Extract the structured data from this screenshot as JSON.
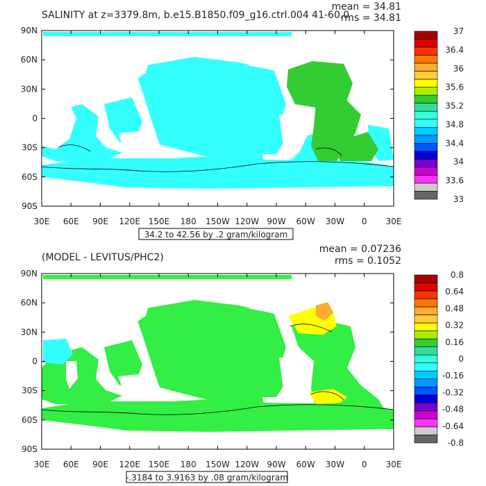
{
  "chart_data": [
    {
      "type": "heatmap",
      "title": "SALINITY at z=3379.8m, b.e15.B1850.f09_g16.ctrl.004 41-60.0",
      "stats": {
        "mean": "mean = 34.81",
        "rms": "rms = 34.81"
      },
      "contour_caption": "34.2 to 42.56 by .2 gram/kilogram",
      "x_ticks": [
        "30E",
        "60E",
        "90E",
        "120E",
        "150E",
        "180",
        "150W",
        "120W",
        "90W",
        "60W",
        "30W",
        "0",
        "30E"
      ],
      "y_ticks": [
        "90N",
        "60N",
        "30N",
        "0",
        "30S",
        "60S",
        "90S"
      ],
      "xlim": [
        30,
        390
      ],
      "ylim": [
        -90,
        90
      ],
      "colorbar": {
        "labels": [
          "37",
          "36.4",
          "36",
          "35.6",
          "35.2",
          "34.8",
          "34.4",
          "34",
          "33.6",
          "33"
        ],
        "colors": [
          "#aa0000",
          "#e00000",
          "#ff3300",
          "#ff7700",
          "#ffaa33",
          "#ffcc33",
          "#ffff00",
          "#aaee00",
          "#33cc33",
          "#33dd99",
          "#33ffdd",
          "#33ffff",
          "#00ccff",
          "#0099ff",
          "#0055ff",
          "#0000dd",
          "#7700cc",
          "#cc00cc",
          "#ff33ff",
          "#cccccc",
          "#666666"
        ]
      },
      "dominant_value_range": "34.8 to 35.2"
    },
    {
      "type": "heatmap",
      "title": "(MODEL - LEVITUS/PHC2)",
      "stats": {
        "mean": "mean = 0.07236",
        "rms": "rms = 0.1052"
      },
      "contour_caption": "-.3184 to 3.9163 by .08 gram/kilogram",
      "x_ticks": [
        "30E",
        "60E",
        "90E",
        "120E",
        "150E",
        "180",
        "150W",
        "120W",
        "90W",
        "60W",
        "30W",
        "0",
        "30E"
      ],
      "y_ticks": [
        "90N",
        "60N",
        "30N",
        "0",
        "30S",
        "60S",
        "90S"
      ],
      "xlim": [
        30,
        390
      ],
      "ylim": [
        -90,
        90
      ],
      "colorbar": {
        "labels": [
          "0.8",
          "0.64",
          "0.48",
          "0.32",
          "0.16",
          "0",
          "-0.16",
          "-0.32",
          "-0.48",
          "-0.64",
          "-0.8"
        ],
        "colors": [
          "#aa0000",
          "#e00000",
          "#ff3300",
          "#ff7700",
          "#ffaa33",
          "#ffcc33",
          "#ffff00",
          "#aaee00",
          "#33cc33",
          "#33dd99",
          "#33ffdd",
          "#33ffff",
          "#00ccff",
          "#0099ff",
          "#0055ff",
          "#0000dd",
          "#7700cc",
          "#cc00cc",
          "#ff33ff",
          "#cccccc",
          "#666666"
        ]
      },
      "dominant_value_range": "0 to 0.08"
    }
  ],
  "colors": {
    "panel1_fill": "#33ffff",
    "panel2_fill": "#33ee44",
    "accent_green": "#33cc33",
    "accent_yellow": "#ffff00",
    "accent_orange": "#ffaa33",
    "contour": "#000000"
  }
}
